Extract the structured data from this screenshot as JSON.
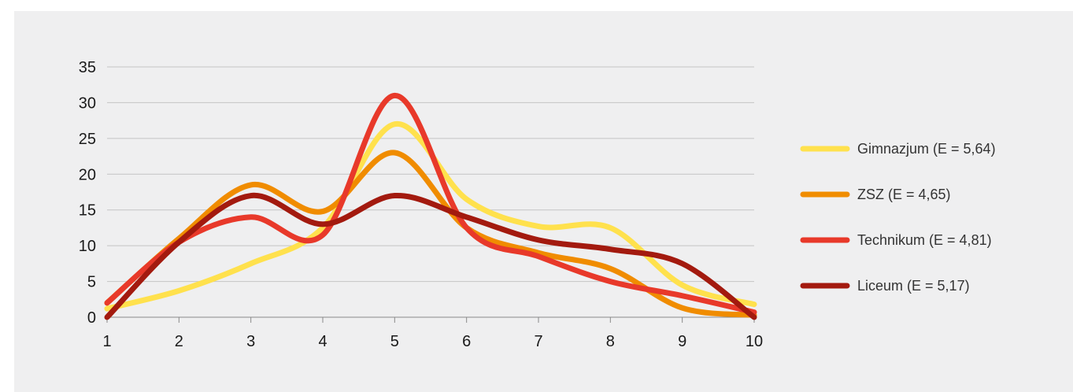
{
  "chart_data": {
    "type": "line",
    "title": "",
    "xlabel": "",
    "ylabel": "",
    "x": [
      1,
      2,
      3,
      4,
      5,
      6,
      7,
      8,
      9,
      10
    ],
    "xlim": [
      1,
      10
    ],
    "ylim": [
      0,
      35
    ],
    "yticks": [
      0,
      5,
      10,
      15,
      20,
      25,
      30,
      35
    ],
    "grid": "horizontal",
    "smooth": true,
    "legend_position": "right",
    "series": [
      {
        "name": "Gimnazjum (E = 5,64)",
        "color": "#ffe14d",
        "values": [
          1.2,
          3.7,
          7.5,
          12.5,
          27,
          16.5,
          12.7,
          12.5,
          4.5,
          1.8
        ]
      },
      {
        "name": "ZSZ (E = 4,65)",
        "color": "#f08c00",
        "values": [
          2,
          11,
          18.5,
          14.8,
          23,
          12.5,
          9,
          6.8,
          1.3,
          0.3
        ]
      },
      {
        "name": "Technikum (E = 4,81)",
        "color": "#e8392a",
        "values": [
          2,
          10.5,
          14,
          11.5,
          31,
          12.5,
          8.5,
          5,
          3,
          0.7
        ]
      },
      {
        "name": "Liceum (E = 5,17)",
        "color": "#a31a0f",
        "values": [
          0,
          10.5,
          17,
          13,
          17,
          14,
          10.8,
          9.5,
          7.5,
          0
        ]
      }
    ]
  }
}
